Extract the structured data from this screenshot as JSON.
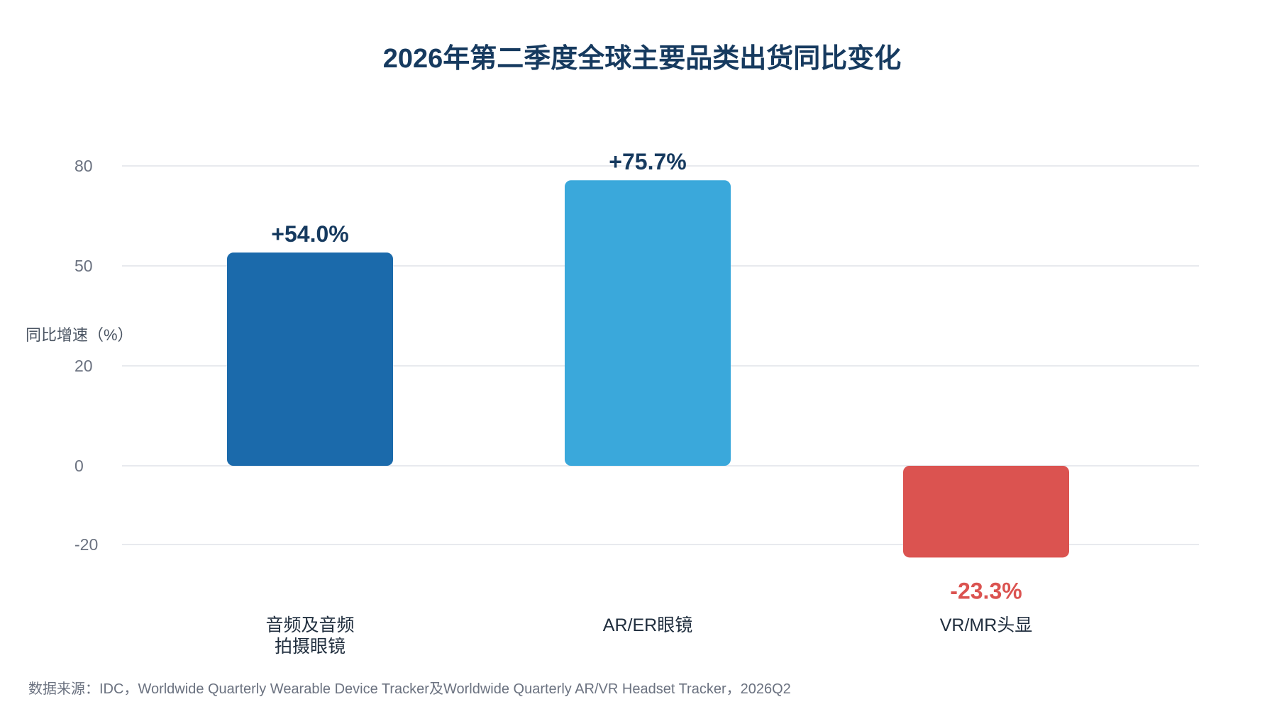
{
  "chart_data": {
    "type": "bar",
    "title": "2026年第二季度全球主要品类出货同比变化",
    "ylabel": "同比增速（%）",
    "xlabel": "",
    "categories": [
      [
        "音频及音频",
        "拍摄眼镜"
      ],
      [
        "AR/ER眼镜"
      ],
      [
        "VR/MR头显"
      ]
    ],
    "values": [
      54.0,
      75.7,
      -23.3
    ],
    "data_labels": [
      "+54.0%",
      "+75.7%",
      "-23.3%"
    ],
    "bar_colors": [
      "#1b6aab",
      "#3aa8db",
      "#db5350"
    ],
    "label_colors": [
      "#163a5f",
      "#163a5f",
      "#db5350"
    ],
    "y_ticks": [
      {
        "value": 80,
        "label": "80"
      },
      {
        "value": 50,
        "label": "50"
      },
      {
        "value": 20,
        "label": "20"
      },
      {
        "value": 0,
        "label": "0"
      },
      {
        "value": -20,
        "label": "-20"
      }
    ],
    "grid": true,
    "legend": "none"
  },
  "source": "数据来源：IDC，Worldwide Quarterly Wearable Device Tracker及Worldwide Quarterly AR/VR Headset Tracker，2026Q2"
}
